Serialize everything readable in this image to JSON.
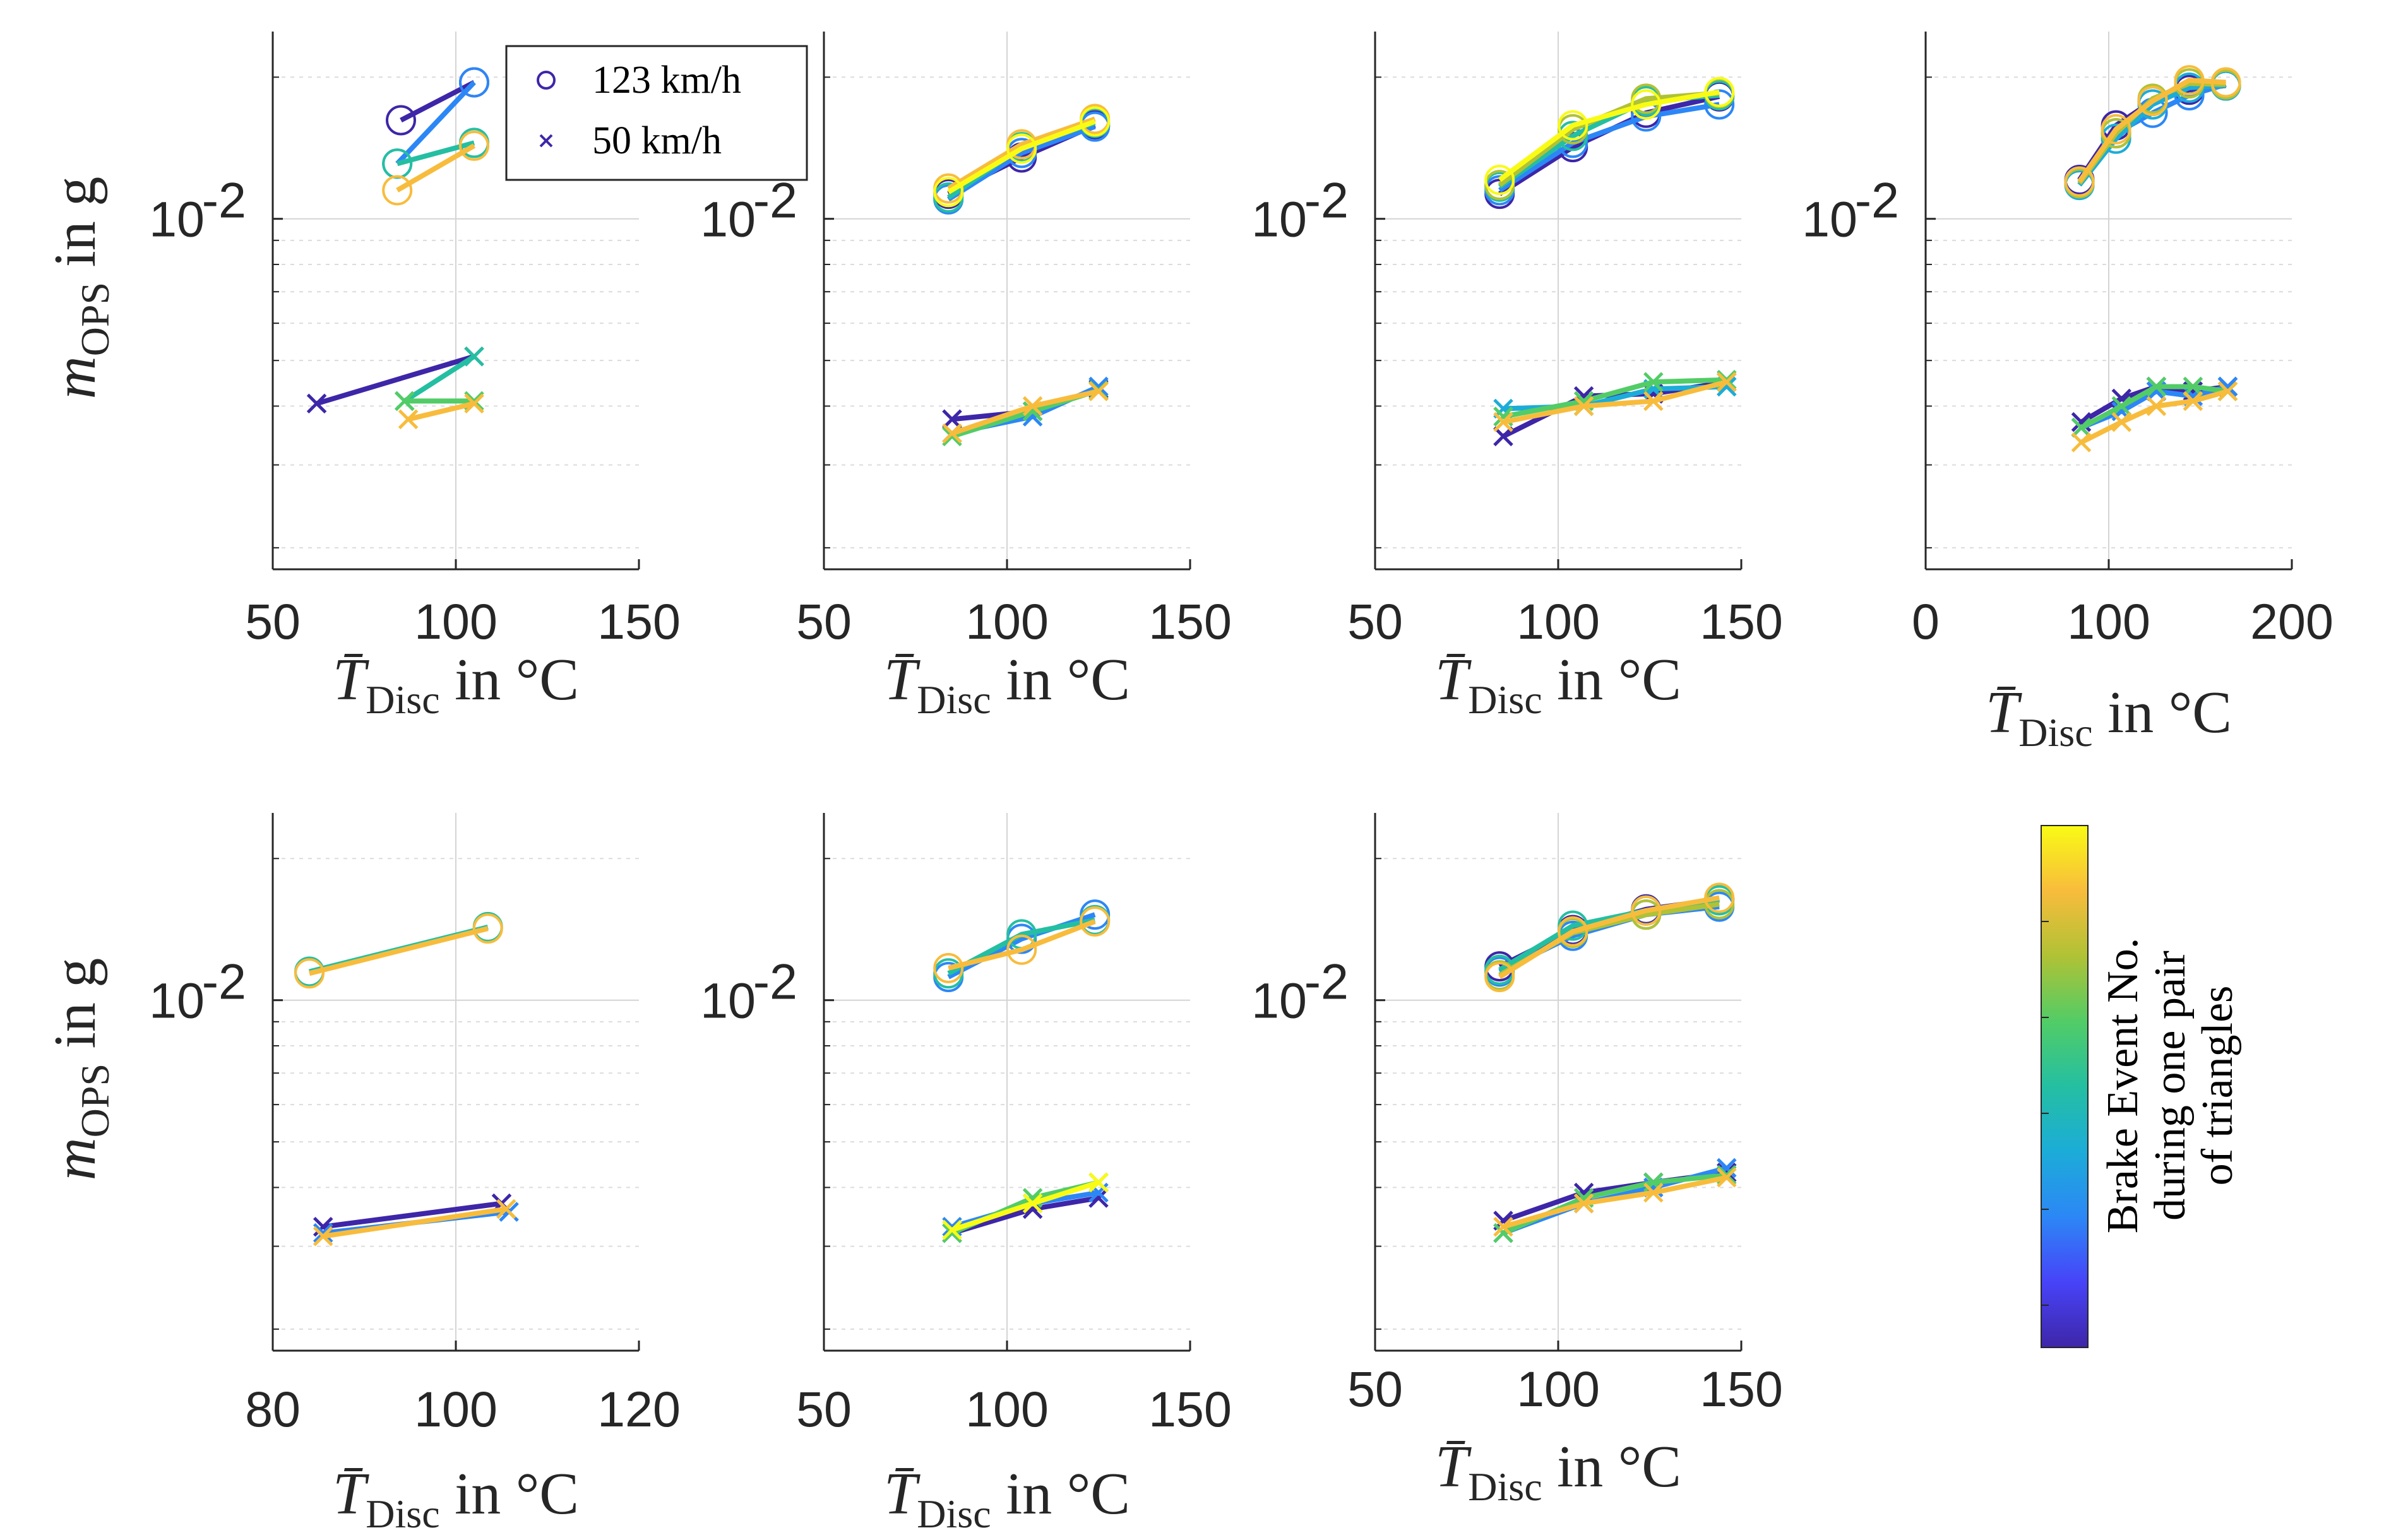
{
  "chart_data": {
    "type": "line",
    "y_scale": "log",
    "ylabel": "m_OPS in g",
    "ylabel_main": "m",
    "ylabel_sub": "OPS",
    "ylabel_suffix": " in g",
    "xlabel_main": "T̄",
    "xlabel_sub": "Disc",
    "xlabel_suffix": " in °C",
    "ytick_label": "10",
    "ytick_exp": "-2",
    "ylim": [
      0.0018,
      0.025
    ],
    "legend": {
      "position": "top-left of first panel",
      "entries": [
        {
          "marker": "circle",
          "label": "123 km/h"
        },
        {
          "marker": "cross",
          "label": "50 km/h"
        }
      ]
    },
    "colorbar": {
      "label_lines": [
        "Brake Event No.",
        "during one pair",
        "of triangles"
      ],
      "colors": [
        "#3e26a8",
        "#4743f8",
        "#2c87f6",
        "#1cacd8",
        "#24bfa2",
        "#52cc66",
        "#b0c235",
        "#f8bc3c",
        "#f9fb15"
      ]
    },
    "panels": [
      {
        "id": 1,
        "xlim": [
          50,
          150
        ],
        "xticks": [
          "50",
          "100",
          "150"
        ],
        "series": [
          {
            "marker": "circle",
            "color": "#3e26a8",
            "x": [
              85,
              105
            ],
            "y": [
              0.0162,
              0.0195
            ]
          },
          {
            "marker": "circle",
            "color": "#2c87f6",
            "x": [
              105,
              84
            ],
            "y": [
              0.0195,
              0.0131
            ]
          },
          {
            "marker": "circle",
            "color": "#24bfa2",
            "x": [
              84,
              105
            ],
            "y": [
              0.0131,
              0.0145
            ]
          },
          {
            "marker": "circle",
            "color": "#f8bc3c",
            "x": [
              84,
              105
            ],
            "y": [
              0.0115,
              0.0143
            ]
          },
          {
            "marker": "cross",
            "color": "#3e26a8",
            "x": [
              62,
              105
            ],
            "y": [
              0.00405,
              0.0051
            ]
          },
          {
            "marker": "cross",
            "color": "#24bfa2",
            "x": [
              105,
              86
            ],
            "y": [
              0.0051,
              0.0041
            ]
          },
          {
            "marker": "cross",
            "color": "#52cc66",
            "x": [
              86,
              105
            ],
            "y": [
              0.0041,
              0.0041
            ]
          },
          {
            "marker": "cross",
            "color": "#f8bc3c",
            "x": [
              87,
              105
            ],
            "y": [
              0.00375,
              0.00405
            ]
          }
        ]
      },
      {
        "id": 2,
        "xlim": [
          50,
          150
        ],
        "xticks": [
          "50",
          "100",
          "150"
        ],
        "series": [
          {
            "marker": "circle",
            "color": "#3e26a8",
            "x": [
              84,
              104,
              124
            ],
            "y": [
              0.0113,
              0.0135,
              0.0158
            ]
          },
          {
            "marker": "circle",
            "color": "#2c87f6",
            "x": [
              84,
              104,
              124
            ],
            "y": [
              0.011,
              0.0138,
              0.0157
            ]
          },
          {
            "marker": "circle",
            "color": "#24bfa2",
            "x": [
              84,
              104,
              124
            ],
            "y": [
              0.0111,
              0.0142,
              0.016
            ]
          },
          {
            "marker": "circle",
            "color": "#f8bc3c",
            "x": [
              84,
              104,
              124
            ],
            "y": [
              0.0116,
              0.0144,
              0.0163
            ]
          },
          {
            "marker": "circle",
            "color": "#f9fb15",
            "x": [
              84,
              104,
              124
            ],
            "y": [
              0.0114,
              0.0141,
              0.0161
            ]
          },
          {
            "marker": "cross",
            "color": "#3e26a8",
            "x": [
              85,
              107,
              125
            ],
            "y": [
              0.00375,
              0.0039,
              0.00435
            ]
          },
          {
            "marker": "cross",
            "color": "#2c87f6",
            "x": [
              85,
              107,
              125
            ],
            "y": [
              0.0035,
              0.0038,
              0.0044
            ]
          },
          {
            "marker": "cross",
            "color": "#52cc66",
            "x": [
              85,
              107,
              125
            ],
            "y": [
              0.00345,
              0.0039,
              0.00432
            ]
          },
          {
            "marker": "cross",
            "color": "#f8bc3c",
            "x": [
              85,
              107,
              125
            ],
            "y": [
              0.0035,
              0.004,
              0.0043
            ]
          }
        ]
      },
      {
        "id": 3,
        "xlim": [
          50,
          150
        ],
        "xticks": [
          "50",
          "100",
          "150"
        ],
        "series": [
          {
            "marker": "circle",
            "color": "#3e26a8",
            "x": [
              84,
              104,
              124,
              144
            ],
            "y": [
              0.0113,
              0.0142,
              0.0168,
              0.0182
            ]
          },
          {
            "marker": "circle",
            "color": "#2c87f6",
            "x": [
              84,
              104,
              124,
              144
            ],
            "y": [
              0.0115,
              0.0145,
              0.0165,
              0.0175
            ]
          },
          {
            "marker": "circle",
            "color": "#24bfa2",
            "x": [
              84,
              104,
              124,
              144
            ],
            "y": [
              0.0117,
              0.015,
              0.0178,
              0.0183
            ]
          },
          {
            "marker": "circle",
            "color": "#b0c235",
            "x": [
              84,
              104,
              124,
              144
            ],
            "y": [
              0.0118,
              0.0155,
              0.018,
              0.0185
            ]
          },
          {
            "marker": "circle",
            "color": "#f9fb15",
            "x": [
              84,
              104,
              124,
              144
            ],
            "y": [
              0.0121,
              0.0158,
              0.0175,
              0.0186
            ]
          },
          {
            "marker": "cross",
            "color": "#3e26a8",
            "x": [
              85,
              107,
              126,
              146
            ],
            "y": [
              0.00345,
              0.0042,
              0.00425,
              0.0045
            ]
          },
          {
            "marker": "cross",
            "color": "#1cacd8",
            "x": [
              85,
              107,
              126,
              146
            ],
            "y": [
              0.00395,
              0.004,
              0.00435,
              0.0044
            ]
          },
          {
            "marker": "cross",
            "color": "#52cc66",
            "x": [
              85,
              107,
              126,
              146
            ],
            "y": [
              0.0038,
              0.0041,
              0.0045,
              0.00455
            ]
          },
          {
            "marker": "cross",
            "color": "#f8bc3c",
            "x": [
              85,
              107,
              126,
              146
            ],
            "y": [
              0.0037,
              0.004,
              0.0041,
              0.0045
            ]
          }
        ]
      },
      {
        "id": 4,
        "xlim": [
          0,
          200
        ],
        "xticks": [
          "0",
          "100",
          "200"
        ],
        "series": [
          {
            "marker": "circle",
            "color": "#3e26a8",
            "x": [
              84,
              104,
              124,
              144,
              164
            ],
            "y": [
              0.0121,
              0.0158,
              0.0178,
              0.0188,
              0.0192
            ]
          },
          {
            "marker": "circle",
            "color": "#2c87f6",
            "x": [
              84,
              104,
              124,
              144,
              164
            ],
            "y": [
              0.012,
              0.0152,
              0.0168,
              0.0183,
              0.0193
            ]
          },
          {
            "marker": "circle",
            "color": "#1cacd8",
            "x": [
              84,
              104,
              124,
              144,
              164
            ],
            "y": [
              0.0118,
              0.0148,
              0.0175,
              0.019,
              0.0192
            ]
          },
          {
            "marker": "circle",
            "color": "#b0c235",
            "x": [
              84,
              104,
              124,
              144,
              164
            ],
            "y": [
              0.0119,
              0.0152,
              0.018,
              0.0194,
              0.0193
            ]
          },
          {
            "marker": "circle",
            "color": "#f8bc3c",
            "x": [
              84,
              104,
              124,
              144,
              164
            ],
            "y": [
              0.012,
              0.0155,
              0.0178,
              0.0197,
              0.0195
            ]
          },
          {
            "marker": "cross",
            "color": "#3e26a8",
            "x": [
              85,
              107,
              126,
              146,
              165
            ],
            "y": [
              0.0037,
              0.00415,
              0.0044,
              0.0043,
              0.0044
            ]
          },
          {
            "marker": "cross",
            "color": "#2c87f6",
            "x": [
              85,
              107,
              126,
              146,
              165
            ],
            "y": [
              0.0036,
              0.0039,
              0.0043,
              0.0042,
              0.0044
            ]
          },
          {
            "marker": "cross",
            "color": "#52cc66",
            "x": [
              85,
              107,
              126,
              146,
              165
            ],
            "y": [
              0.0036,
              0.004,
              0.0044,
              0.0044,
              0.0043
            ]
          },
          {
            "marker": "cross",
            "color": "#f8bc3c",
            "x": [
              85,
              107,
              126,
              146,
              165
            ],
            "y": [
              0.00335,
              0.0037,
              0.004,
              0.0041,
              0.0043
            ]
          }
        ]
      },
      {
        "id": 5,
        "xlim": [
          80,
          120
        ],
        "xticks": [
          "80",
          "100",
          "120"
        ],
        "series": [
          {
            "marker": "circle",
            "color": "#24bfa2",
            "x": [
              84,
              103.5
            ],
            "y": [
              0.0115,
              0.0143
            ]
          },
          {
            "marker": "circle",
            "color": "#f8bc3c",
            "x": [
              84,
              103.5
            ],
            "y": [
              0.0114,
              0.0142
            ]
          },
          {
            "marker": "cross",
            "color": "#3e26a8",
            "x": [
              85.5,
              105
            ],
            "y": [
              0.0033,
              0.0037
            ]
          },
          {
            "marker": "cross",
            "color": "#2c87f6",
            "x": [
              85.5,
              105.8
            ],
            "y": [
              0.0032,
              0.00355
            ]
          },
          {
            "marker": "cross",
            "color": "#f8bc3c",
            "x": [
              85.5,
              105.5
            ],
            "y": [
              0.00315,
              0.0036
            ]
          }
        ]
      },
      {
        "id": 6,
        "xlim": [
          50,
          150
        ],
        "xticks": [
          "50",
          "100",
          "150"
        ],
        "series": [
          {
            "marker": "circle",
            "color": "#2c87f6",
            "x": [
              84,
              104,
              124
            ],
            "y": [
              0.0112,
              0.0135,
              0.0152
            ]
          },
          {
            "marker": "circle",
            "color": "#24bfa2",
            "x": [
              84,
              104,
              124
            ],
            "y": [
              0.0114,
              0.0138,
              0.0148
            ]
          },
          {
            "marker": "circle",
            "color": "#f8bc3c",
            "x": [
              84,
              104,
              124
            ],
            "y": [
              0.0117,
              0.0128,
              0.0147
            ]
          },
          {
            "marker": "cross",
            "color": "#3e26a8",
            "x": [
              85,
              107,
              125
            ],
            "y": [
              0.0032,
              0.0036,
              0.0038
            ]
          },
          {
            "marker": "cross",
            "color": "#2c87f6",
            "x": [
              85,
              107,
              125
            ],
            "y": [
              0.0033,
              0.0037,
              0.0039
            ]
          },
          {
            "marker": "cross",
            "color": "#52cc66",
            "x": [
              85,
              107,
              125
            ],
            "y": [
              0.0032,
              0.0038,
              0.0041
            ]
          },
          {
            "marker": "cross",
            "color": "#f9fb15",
            "x": [
              85,
              107,
              125
            ],
            "y": [
              0.00325,
              0.0037,
              0.0041
            ]
          }
        ]
      },
      {
        "id": 7,
        "xlim": [
          50,
          150
        ],
        "xticks": [
          "50",
          "100",
          "150"
        ],
        "series": [
          {
            "marker": "circle",
            "color": "#3e26a8",
            "x": [
              84,
              104,
              124,
              144
            ],
            "y": [
              0.0118,
              0.0141,
              0.0156,
              0.0164
            ]
          },
          {
            "marker": "circle",
            "color": "#2c87f6",
            "x": [
              84,
              104,
              124,
              144
            ],
            "y": [
              0.0115,
              0.0137,
              0.0152,
              0.0158
            ]
          },
          {
            "marker": "circle",
            "color": "#24bfa2",
            "x": [
              84,
              104,
              124,
              144
            ],
            "y": [
              0.0116,
              0.0144,
              0.0155,
              0.0163
            ]
          },
          {
            "marker": "circle",
            "color": "#b0c235",
            "x": [
              84,
              104,
              124,
              144
            ],
            "y": [
              0.0113,
              0.0139,
              0.0152,
              0.016
            ]
          },
          {
            "marker": "circle",
            "color": "#f8bc3c",
            "x": [
              84,
              104,
              124,
              144
            ],
            "y": [
              0.0112,
              0.014,
              0.0155,
              0.0165
            ]
          },
          {
            "marker": "cross",
            "color": "#3e26a8",
            "x": [
              85,
              107,
              126,
              146
            ],
            "y": [
              0.0034,
              0.0039,
              0.0041,
              0.0043
            ]
          },
          {
            "marker": "cross",
            "color": "#2c87f6",
            "x": [
              85,
              107,
              126,
              146
            ],
            "y": [
              0.0032,
              0.0037,
              0.004,
              0.0044
            ]
          },
          {
            "marker": "cross",
            "color": "#52cc66",
            "x": [
              85,
              107,
              126,
              146
            ],
            "y": [
              0.0032,
              0.0038,
              0.0041,
              0.00425
            ]
          },
          {
            "marker": "cross",
            "color": "#f8bc3c",
            "x": [
              85,
              107,
              126,
              146
            ],
            "y": [
              0.0033,
              0.0037,
              0.0039,
              0.0042
            ]
          }
        ]
      }
    ]
  }
}
